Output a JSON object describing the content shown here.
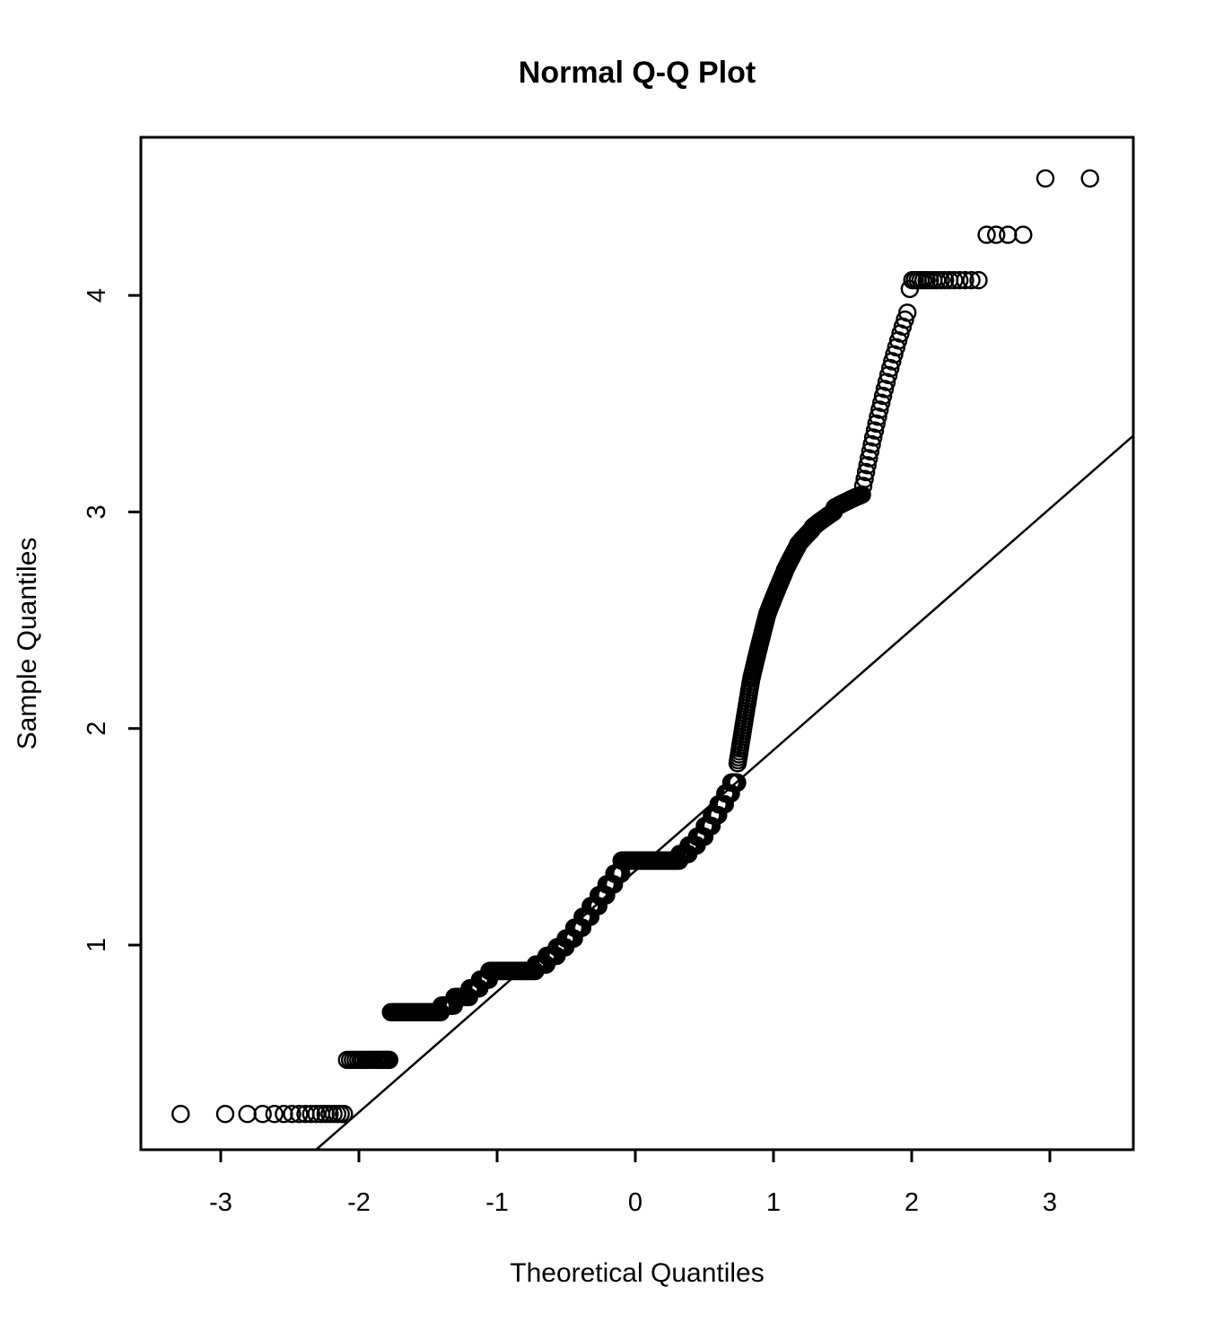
{
  "chart_data": {
    "type": "scatter",
    "subtype": "normal-qq-plot",
    "title": "Normal Q-Q Plot",
    "xlabel": "Theoretical Quantiles",
    "ylabel": "Sample Quantiles",
    "x_ticks": [
      -3,
      -2,
      -1,
      0,
      1,
      2,
      3
    ],
    "y_ticks": [
      1,
      2,
      3,
      4
    ],
    "xlim": [
      -3.578,
      3.604
    ],
    "ylim": [
      0.055,
      4.73
    ],
    "grid": false,
    "n_points": 1000,
    "theoretical_rule": "qnorm((i-0.5)/n) for i=1..n",
    "sample_value_segments": [
      {
        "count": 18,
        "from": 0.22,
        "to": 0.22
      },
      {
        "count": 20,
        "from": 0.47,
        "to": 0.47
      },
      {
        "count": 42,
        "from": 0.69,
        "to": 0.69
      },
      {
        "count": 15,
        "from": 0.72,
        "to": 0.72
      },
      {
        "count": 20,
        "from": 0.76,
        "to": 0.76
      },
      {
        "count": 15,
        "from": 0.8,
        "to": 0.8
      },
      {
        "count": 15,
        "from": 0.84,
        "to": 0.84
      },
      {
        "count": 90,
        "from": 0.88,
        "to": 0.88
      },
      {
        "count": 25,
        "from": 0.91,
        "to": 0.91
      },
      {
        "count": 25,
        "from": 0.95,
        "to": 0.95
      },
      {
        "count": 22,
        "from": 0.99,
        "to": 0.99
      },
      {
        "count": 22,
        "from": 1.03,
        "to": 1.03
      },
      {
        "count": 22,
        "from": 1.08,
        "to": 1.08
      },
      {
        "count": 22,
        "from": 1.13,
        "to": 1.13
      },
      {
        "count": 22,
        "from": 1.18,
        "to": 1.18
      },
      {
        "count": 22,
        "from": 1.23,
        "to": 1.23
      },
      {
        "count": 22,
        "from": 1.28,
        "to": 1.28
      },
      {
        "count": 21,
        "from": 1.33,
        "to": 1.33
      },
      {
        "count": 165,
        "from": 1.39,
        "to": 1.39
      },
      {
        "count": 25,
        "from": 1.42,
        "to": 1.42
      },
      {
        "count": 22,
        "from": 1.46,
        "to": 1.46
      },
      {
        "count": 20,
        "from": 1.5,
        "to": 1.5
      },
      {
        "count": 18,
        "from": 1.55,
        "to": 1.55
      },
      {
        "count": 16,
        "from": 1.6,
        "to": 1.6
      },
      {
        "count": 16,
        "from": 1.65,
        "to": 1.65
      },
      {
        "count": 14,
        "from": 1.7,
        "to": 1.7
      },
      {
        "count": 14,
        "from": 1.75,
        "to": 1.75
      },
      {
        "count": 30,
        "from": 1.84,
        "to": 2.23
      },
      {
        "count": 30,
        "from": 2.24,
        "to": 2.52
      },
      {
        "count": 30,
        "from": 2.53,
        "to": 2.72
      },
      {
        "count": 20,
        "from": 2.73,
        "to": 2.84
      },
      {
        "count": 20,
        "from": 2.85,
        "to": 2.92
      },
      {
        "count": 25,
        "from": 2.93,
        "to": 3.0
      },
      {
        "count": 25,
        "from": 3.02,
        "to": 3.08
      },
      {
        "count": 26,
        "from": 3.12,
        "to": 3.92
      },
      {
        "count": 1,
        "from": 4.03,
        "to": 4.03
      },
      {
        "count": 17,
        "from": 4.07,
        "to": 4.07
      },
      {
        "count": 4,
        "from": 4.28,
        "to": 4.28
      },
      {
        "count": 2,
        "from": 4.54,
        "to": 4.54
      }
    ],
    "reference_line": {
      "slope": 0.5575,
      "intercept": 1.343
    },
    "point_style": {
      "shape": "open-circle",
      "color": "#000000",
      "radius_px": 9
    },
    "colors": {
      "foreground": "#000000",
      "background": "#ffffff"
    }
  }
}
